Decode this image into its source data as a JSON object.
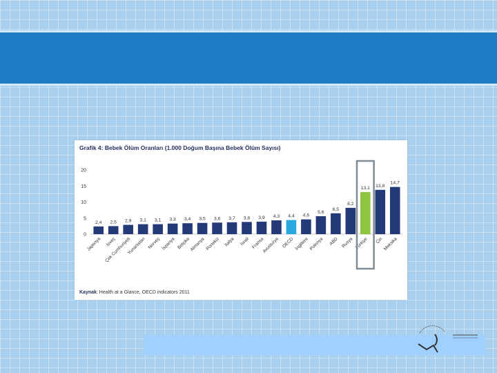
{
  "chart_data": {
    "type": "bar",
    "title": "Grafik 4: Bebek Ölüm Oranları (1.000 Doğum Başına Bebek Ölüm Sayısı)",
    "source_label": "Kaynak",
    "source_text": ": Health at a Glance, OECD indicators 2011",
    "categories": [
      "Japonya",
      "İsveç",
      "Çek Cumhuriyeti",
      "Yunanistan",
      "Norveç",
      "İspanya",
      "Belçika",
      "Almanya",
      "Portekiz",
      "İtalya",
      "İsrail",
      "Fransa",
      "Avusturya",
      "OECD",
      "İngiltere",
      "Polonya",
      "ABD",
      "Rusya",
      "Türkiye",
      "Çin",
      "Meksika"
    ],
    "values": [
      2.4,
      2.5,
      2.9,
      3.1,
      3.1,
      3.3,
      3.4,
      3.5,
      3.6,
      3.7,
      3.8,
      3.9,
      4.3,
      4.4,
      4.6,
      5.6,
      6.5,
      8.2,
      13.1,
      13.8,
      14.7
    ],
    "value_labels": [
      "2,4",
      "2,5",
      "2,9",
      "3,1",
      "3,1",
      "3,3",
      "3,4",
      "3,5",
      "3,6",
      "3,7",
      "3,8",
      "3,9",
      "4,3",
      "4,4",
      "4,6",
      "5,6",
      "6,5",
      "8,2",
      "13,1",
      "13,8",
      "14,7"
    ],
    "y_ticks": [
      "0",
      "5",
      "10",
      "15",
      "20"
    ],
    "ylim": [
      0,
      20
    ],
    "xlabel": "",
    "ylabel": "",
    "grid": false,
    "colors": {
      "default": "#243a78",
      "oecd": "#29a8df",
      "turkey": "#8fc43f",
      "highlight_box": "#7f8c96"
    },
    "highlight_category": "Türkiye"
  }
}
